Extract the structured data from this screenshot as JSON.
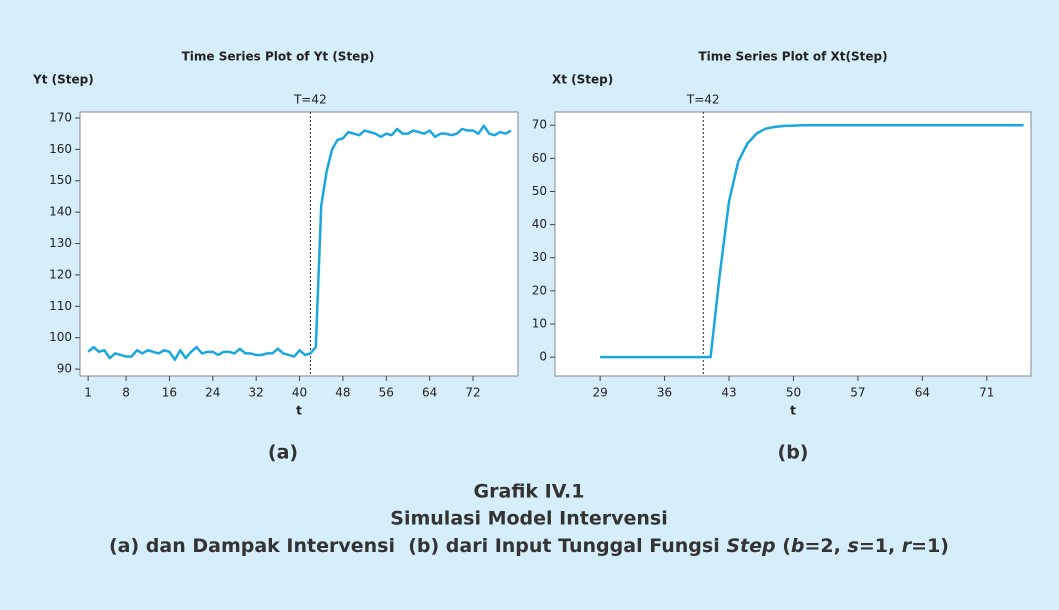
{
  "chart_data": [
    {
      "type": "line",
      "title": "Time Series Plot of Yt (Step)",
      "ylabel": "Yt (Step)",
      "xlabel": "t",
      "panel_label": "(a)",
      "annotations": [
        {
          "text": "T=42",
          "x": 42
        }
      ],
      "color": "#1aa7e0",
      "x": [
        1,
        2,
        3,
        4,
        5,
        6,
        7,
        8,
        9,
        10,
        11,
        12,
        13,
        14,
        15,
        16,
        17,
        18,
        19,
        20,
        21,
        22,
        23,
        24,
        25,
        26,
        27,
        28,
        29,
        30,
        31,
        32,
        33,
        34,
        35,
        36,
        37,
        38,
        39,
        40,
        41,
        42,
        43,
        44,
        45,
        46,
        47,
        48,
        49,
        50,
        51,
        52,
        53,
        54,
        55,
        56,
        57,
        58,
        59,
        60,
        61,
        62,
        63,
        64,
        65,
        66,
        67,
        68,
        69,
        70,
        71,
        72,
        73,
        74,
        75,
        76,
        77,
        78,
        79
      ],
      "values": [
        95.5,
        97,
        95.5,
        96,
        93.5,
        95,
        94.5,
        94,
        94,
        96,
        95,
        96,
        95.5,
        95,
        96,
        95.5,
        93,
        96,
        93.5,
        95.5,
        97,
        95,
        95.5,
        95.5,
        94.5,
        95.5,
        95.5,
        95,
        96.5,
        95,
        95,
        94.5,
        94.5,
        95,
        95,
        96.5,
        95,
        94.5,
        94,
        96,
        94.5,
        95,
        97,
        142,
        153,
        160,
        163,
        163.5,
        165.5,
        165,
        164.5,
        166,
        165.5,
        165,
        164,
        165,
        164.5,
        166.5,
        165,
        165,
        166,
        165.5,
        165,
        166,
        164,
        165,
        165,
        164.5,
        165,
        166.5,
        166,
        166,
        165,
        167.5,
        165,
        164.5,
        165.5,
        165,
        166
      ],
      "xlim": [
        -0.5,
        80.3
      ],
      "xticks": [
        1,
        8,
        16,
        24,
        32,
        40,
        48,
        56,
        64,
        72
      ],
      "ylim": [
        87.8,
        171.9
      ],
      "yticks": [
        90,
        100,
        110,
        120,
        130,
        140,
        150,
        160,
        170
      ]
    },
    {
      "type": "line",
      "title": "Time Series Plot of Xt(Step)",
      "ylabel": "Xt (Step)",
      "xlabel": "t",
      "panel_label": "(b)",
      "annotations": [
        {
          "text": "T=42",
          "x": 40.2
        }
      ],
      "color": "#1aa7e0",
      "x": [
        29,
        41,
        42,
        43,
        44,
        45,
        46,
        47,
        48,
        49,
        50,
        51,
        52,
        75
      ],
      "values": [
        0,
        0,
        25,
        47,
        59,
        64.5,
        67.5,
        69,
        69.5,
        69.8,
        69.9,
        70,
        70,
        70
      ],
      "xlim": [
        24.1,
        75.8
      ],
      "xticks": [
        29,
        36,
        43,
        50,
        57,
        64,
        71
      ],
      "ylim": [
        -5.7,
        74.0
      ],
      "yticks": [
        0,
        10,
        20,
        30,
        40,
        50,
        60,
        70
      ]
    }
  ],
  "figure": {
    "number": "Grafik IV.1",
    "title": "Simulasi Model Intervensi",
    "description": [
      {
        "text": "(a) dan Dampak Intervensi  (b) dari Input Tunggal Fungsi ",
        "italic": false
      },
      {
        "text": "Step",
        "italic": true
      },
      {
        "text": " (",
        "italic": false
      },
      {
        "text": "b",
        "italic": true
      },
      {
        "text": "=2, ",
        "italic": false
      },
      {
        "text": "s",
        "italic": true
      },
      {
        "text": "=1, ",
        "italic": false
      },
      {
        "text": "r",
        "italic": true
      },
      {
        "text": "=1)",
        "italic": false
      }
    ]
  }
}
